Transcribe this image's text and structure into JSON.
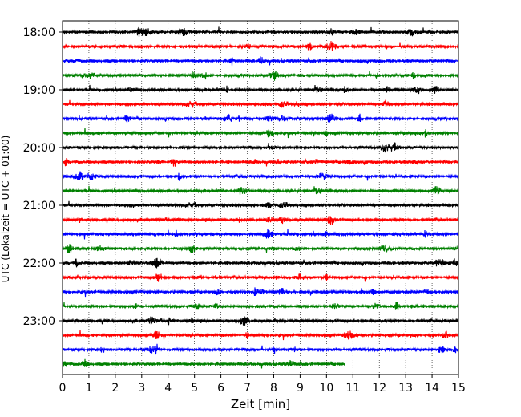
{
  "chart_data": {
    "type": "line",
    "title": "",
    "xlabel": "Zeit  [min]",
    "ylabel": "UTC (Lokalzeit = UTC + 01:00)",
    "xlim": [
      0,
      15
    ],
    "x_ticks": [
      0,
      1,
      2,
      3,
      4,
      5,
      6,
      7,
      8,
      9,
      10,
      11,
      12,
      13,
      14,
      15
    ],
    "y_ticks": [
      "18:00",
      "19:00",
      "20:00",
      "21:00",
      "22:00",
      "23:00"
    ],
    "trace_interval_minutes": 15,
    "vertical_grid": "dotted",
    "trace_colors": [
      "#000000",
      "#ff0000",
      "#0000ff",
      "#008000"
    ],
    "traces": [
      {
        "start": "18:00",
        "end_min": 15
      },
      {
        "start": "18:15",
        "end_min": 15
      },
      {
        "start": "18:30",
        "end_min": 15
      },
      {
        "start": "18:45",
        "end_min": 15
      },
      {
        "start": "19:00",
        "end_min": 15
      },
      {
        "start": "19:15",
        "end_min": 15
      },
      {
        "start": "19:30",
        "end_min": 15
      },
      {
        "start": "19:45",
        "end_min": 15
      },
      {
        "start": "20:00",
        "end_min": 15
      },
      {
        "start": "20:15",
        "end_min": 15
      },
      {
        "start": "20:30",
        "end_min": 15
      },
      {
        "start": "20:45",
        "end_min": 15
      },
      {
        "start": "21:00",
        "end_min": 15
      },
      {
        "start": "21:15",
        "end_min": 15
      },
      {
        "start": "21:30",
        "end_min": 15
      },
      {
        "start": "21:45",
        "end_min": 15
      },
      {
        "start": "22:00",
        "end_min": 15
      },
      {
        "start": "22:15",
        "end_min": 15
      },
      {
        "start": "22:30",
        "end_min": 15
      },
      {
        "start": "22:45",
        "end_min": 15
      },
      {
        "start": "23:00",
        "end_min": 15
      },
      {
        "start": "23:15",
        "end_min": 15
      },
      {
        "start": "23:30",
        "end_min": 15
      },
      {
        "start": "23:45",
        "end_min": 10.7
      }
    ]
  }
}
